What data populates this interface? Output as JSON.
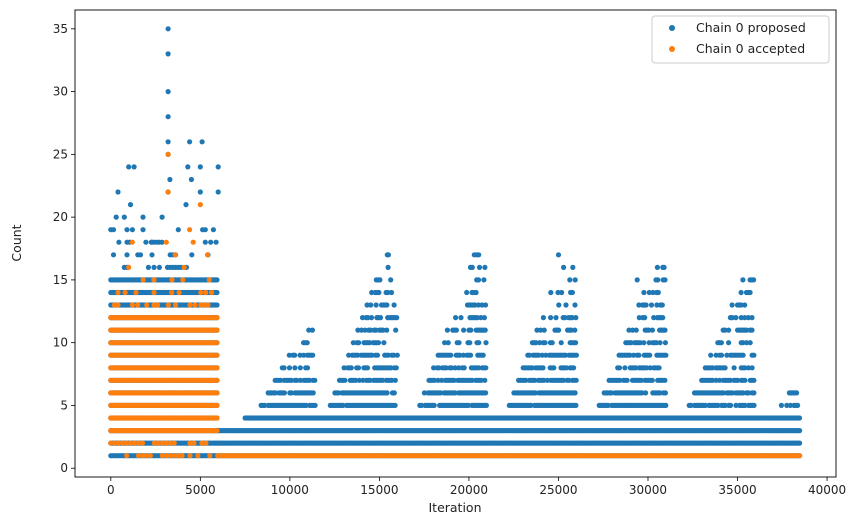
{
  "chart_data": {
    "type": "scatter",
    "title": "",
    "xlabel": "Iteration",
    "ylabel": "Count",
    "xlim": [
      -2000,
      40500
    ],
    "ylim": [
      -0.7,
      36.5
    ],
    "xticks": [
      0,
      5000,
      10000,
      15000,
      20000,
      25000,
      30000,
      35000,
      40000
    ],
    "yticks": [
      0,
      5,
      10,
      15,
      20,
      25,
      30,
      35
    ],
    "xtick_labels": [
      "0",
      "5000",
      "10000",
      "15000",
      "20000",
      "25000",
      "30000",
      "35000",
      "40000"
    ],
    "ytick_labels": [
      "0",
      "5",
      "10",
      "15",
      "20",
      "25",
      "30",
      "35"
    ],
    "grid": false,
    "legend": "top-right",
    "series": [
      {
        "name": "Chain 0 proposed",
        "color": "#1f77b4",
        "dense_bands": [
          {
            "x_start": 0,
            "x_end": 6000,
            "y_levels": [
              1,
              2,
              3,
              4,
              5,
              6,
              7,
              8,
              9,
              10,
              11,
              12,
              13,
              14,
              15
            ]
          },
          {
            "x_start": 6000,
            "x_end": 38500,
            "y_levels": [
              1,
              2,
              3
            ]
          },
          {
            "x_start": 7500,
            "x_end": 38500,
            "y_levels": [
              4
            ]
          }
        ],
        "peaks": [
          {
            "x_start": 8000,
            "x_end": 11500,
            "max": 11
          },
          {
            "x_start": 12000,
            "x_end": 16000,
            "max": 17
          },
          {
            "x_start": 17000,
            "x_end": 21000,
            "max": 17
          },
          {
            "x_start": 22000,
            "x_end": 26000,
            "max": 17
          },
          {
            "x_start": 27000,
            "x_end": 31000,
            "max": 16
          },
          {
            "x_start": 32000,
            "x_end": 36000,
            "max": 15
          },
          {
            "x_start": 37000,
            "x_end": 38500,
            "max": 6
          }
        ],
        "outliers": [
          {
            "x": 3200,
            "y": 35
          },
          {
            "x": 3200,
            "y": 33
          },
          {
            "x": 3200,
            "y": 30
          },
          {
            "x": 3200,
            "y": 28
          },
          {
            "x": 3200,
            "y": 26
          },
          {
            "x": 4400,
            "y": 26
          },
          {
            "x": 5100,
            "y": 26
          },
          {
            "x": 3200,
            "y": 25
          },
          {
            "x": 1000,
            "y": 24
          },
          {
            "x": 1300,
            "y": 24
          },
          {
            "x": 4300,
            "y": 24
          },
          {
            "x": 5000,
            "y": 24
          },
          {
            "x": 6000,
            "y": 24
          },
          {
            "x": 3300,
            "y": 23
          },
          {
            "x": 4500,
            "y": 23
          },
          {
            "x": 400,
            "y": 22
          },
          {
            "x": 3200,
            "y": 22
          },
          {
            "x": 5000,
            "y": 22
          },
          {
            "x": 6000,
            "y": 22
          },
          {
            "x": 1100,
            "y": 21
          },
          {
            "x": 4200,
            "y": 21
          },
          {
            "x": 20300,
            "y": 17
          },
          {
            "x": 25000,
            "y": 17
          },
          {
            "x": 15500,
            "y": 17
          },
          {
            "x": 25800,
            "y": 16
          },
          {
            "x": 30900,
            "y": 16
          },
          {
            "x": 29400,
            "y": 15
          },
          {
            "x": 35900,
            "y": 15
          },
          {
            "x": 20400,
            "y": 14
          },
          {
            "x": 1800,
            "y": 20
          },
          {
            "x": 1800,
            "y": 19
          },
          {
            "x": 2300,
            "y": 18
          },
          {
            "x": 2300,
            "y": 17
          },
          {
            "x": 2100,
            "y": 16
          },
          {
            "x": 20300,
            "y": 13
          }
        ]
      },
      {
        "name": "Chain 0 accepted",
        "color": "#ff7f0e",
        "dense_bands": [
          {
            "x_start": 0,
            "x_end": 6000,
            "y_levels": [
              3,
              4,
              5,
              6,
              7,
              8,
              9,
              10,
              11,
              12
            ]
          },
          {
            "x_start": 6000,
            "x_end": 38500,
            "y_levels": [
              1
            ]
          }
        ],
        "sparse": [
          {
            "x_start": 0,
            "x_end": 6000,
            "y_levels": [
              1,
              2
            ]
          }
        ],
        "outliers": [
          {
            "x": 3200,
            "y": 25
          },
          {
            "x": 3200,
            "y": 22
          },
          {
            "x": 5000,
            "y": 21
          },
          {
            "x": 4400,
            "y": 19
          },
          {
            "x": 3100,
            "y": 18
          },
          {
            "x": 4600,
            "y": 18
          },
          {
            "x": 1200,
            "y": 18
          },
          {
            "x": 3600,
            "y": 17
          },
          {
            "x": 5400,
            "y": 17
          },
          {
            "x": 1000,
            "y": 16
          },
          {
            "x": 4100,
            "y": 16
          },
          {
            "x": 5500,
            "y": 15
          },
          {
            "x": 2400,
            "y": 15
          },
          {
            "x": 3400,
            "y": 14
          },
          {
            "x": 5300,
            "y": 14
          },
          {
            "x": 1500,
            "y": 13
          },
          {
            "x": 4700,
            "y": 13
          }
        ]
      }
    ]
  }
}
